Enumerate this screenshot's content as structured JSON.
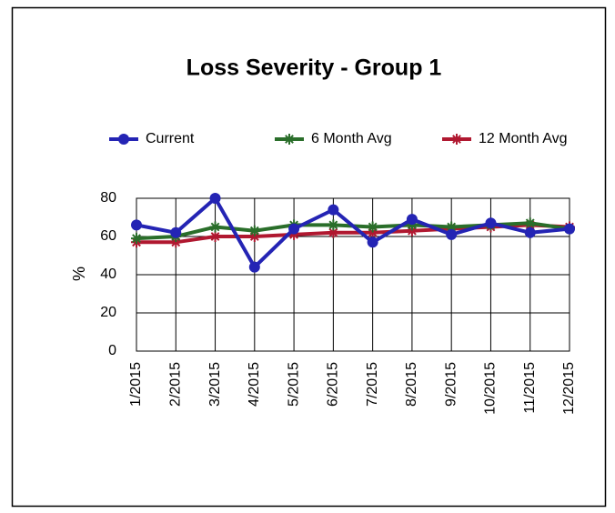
{
  "chart_data": {
    "type": "line",
    "title": "Loss Severity - Group 1",
    "y_label": "%",
    "categories": [
      "1/2015",
      "2/2015",
      "3/2015",
      "4/2015",
      "5/2015",
      "6/2015",
      "7/2015",
      "8/2015",
      "9/2015",
      "10/2015",
      "11/2015",
      "12/2015"
    ],
    "series": [
      {
        "name": "Current",
        "color": "#2424b4",
        "marker": "circle",
        "values": [
          66,
          62,
          80,
          44,
          64,
          74,
          57,
          69,
          61,
          67,
          62,
          64
        ]
      },
      {
        "name": "6 Month Avg",
        "color": "#2a6e2a",
        "marker": "star",
        "values": [
          59,
          60,
          65,
          63,
          66,
          66,
          65,
          66,
          65,
          66,
          67,
          64
        ]
      },
      {
        "name": "12 Month Avg",
        "color": "#b01830",
        "marker": "star",
        "values": [
          57,
          57,
          60,
          60,
          61,
          62,
          62,
          63,
          64,
          65,
          66,
          65
        ]
      }
    ],
    "ylim": [
      0,
      80
    ],
    "yticks": [
      0,
      20,
      40,
      60,
      80
    ],
    "grid": true
  }
}
